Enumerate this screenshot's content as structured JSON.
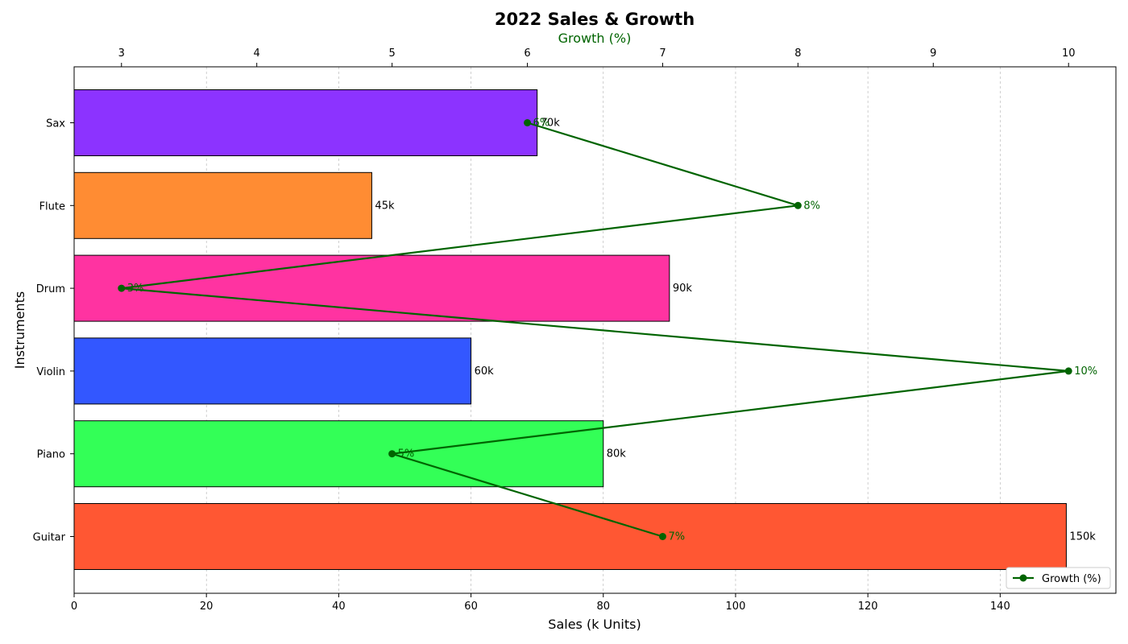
{
  "chart_data": {
    "type": "bar",
    "orientation": "horizontal",
    "title": "2022 Sales & Growth",
    "xlabel": "Sales (k Units)",
    "ylabel": "Instruments",
    "secondary_xlabel": "Growth (%)",
    "categories": [
      "Guitar",
      "Piano",
      "Violin",
      "Drum",
      "Flute",
      "Sax"
    ],
    "series": [
      {
        "type": "bar",
        "values": [
          150,
          80,
          60,
          90,
          45,
          70
        ],
        "value_labels": [
          "150k",
          "80k",
          "60k",
          "90k",
          "45k",
          "70k"
        ],
        "colors": [
          "#ff5733",
          "#33ff57",
          "#3357ff",
          "#ff33a1",
          "#ff8c33",
          "#8c33ff"
        ]
      },
      {
        "name": "Growth (%)",
        "type": "line",
        "axis": "top",
        "values": [
          7,
          5,
          10,
          3,
          8,
          6
        ],
        "value_labels": [
          "7%",
          "5%",
          "10%",
          "3%",
          "8%",
          "6%"
        ],
        "color": "#006400"
      }
    ],
    "xlim": [
      0,
      157.5
    ],
    "xticks": [
      0,
      20,
      40,
      60,
      80,
      100,
      120,
      140
    ],
    "top_xlim": [
      2.65,
      10.35
    ],
    "top_xticks": [
      3,
      4,
      5,
      6,
      7,
      8,
      9,
      10
    ],
    "grid": "vertical dashed",
    "legend": {
      "position": "bottom-right",
      "entries": [
        "Growth (%)"
      ]
    }
  }
}
